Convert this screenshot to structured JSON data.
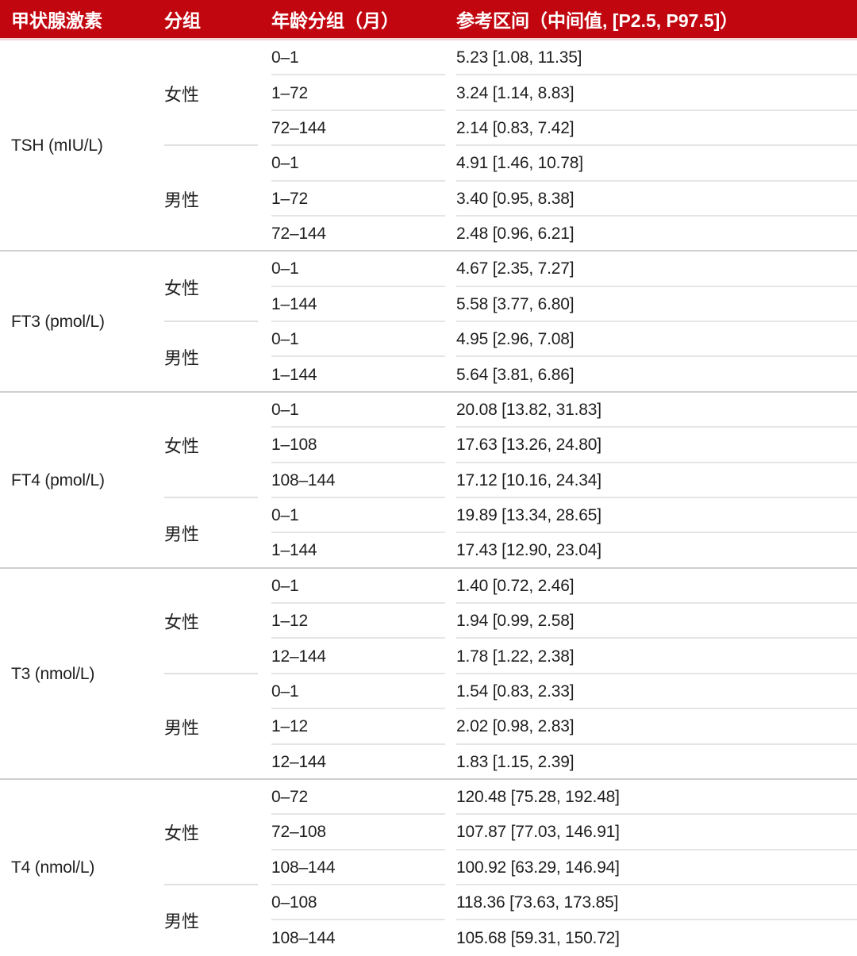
{
  "colors": {
    "header_bg": "#c2060f",
    "header_text": "#ffffff"
  },
  "table": {
    "header": {
      "bg_color": "#c2060f",
      "columns": [
        "甲状腺激素",
        "分组",
        "年龄分组（月）",
        "参考区间（中间值, [P2.5, P97.5]）"
      ]
    },
    "sections": [
      {
        "hormone": "TSH (mIU/L)",
        "groups": [
          {
            "sex": "女性",
            "rows": [
              {
                "age": "0–1",
                "interval": "5.23 [1.08, 11.35]"
              },
              {
                "age": "1–72",
                "interval": "3.24 [1.14, 8.83]"
              },
              {
                "age": "72–144",
                "interval": "2.14 [0.83, 7.42]"
              }
            ]
          },
          {
            "sex": "男性",
            "rows": [
              {
                "age": "0–1",
                "interval": "4.91 [1.46, 10.78]"
              },
              {
                "age": "1–72",
                "interval": "3.40 [0.95, 8.38]"
              },
              {
                "age": "72–144",
                "interval": "2.48 [0.96, 6.21]"
              }
            ]
          }
        ]
      },
      {
        "hormone": "FT3 (pmol/L)",
        "groups": [
          {
            "sex": "女性",
            "rows": [
              {
                "age": "0–1",
                "interval": "4.67 [2.35, 7.27]"
              },
              {
                "age": "1–144",
                "interval": "5.58 [3.77, 6.80]"
              }
            ]
          },
          {
            "sex": "男性",
            "rows": [
              {
                "age": "0–1",
                "interval": "4.95 [2.96, 7.08]"
              },
              {
                "age": "1–144",
                "interval": "5.64 [3.81, 6.86]"
              }
            ]
          }
        ]
      },
      {
        "hormone": "FT4 (pmol/L)",
        "groups": [
          {
            "sex": "女性",
            "rows": [
              {
                "age": "0–1",
                "interval": "20.08 [13.82, 31.83]"
              },
              {
                "age": "1–108",
                "interval": "17.63 [13.26, 24.80]"
              },
              {
                "age": "108–144",
                "interval": "17.12 [10.16, 24.34]"
              }
            ]
          },
          {
            "sex": "男性",
            "rows": [
              {
                "age": "0–1",
                "interval": "19.89 [13.34, 28.65]"
              },
              {
                "age": "1–144",
                "interval": "17.43 [12.90, 23.04]"
              }
            ]
          }
        ]
      },
      {
        "hormone": "T3 (nmol/L)",
        "groups": [
          {
            "sex": "女性",
            "rows": [
              {
                "age": "0–1",
                "interval": "1.40 [0.72, 2.46]"
              },
              {
                "age": "1–12",
                "interval": "1.94 [0.99, 2.58]"
              },
              {
                "age": "12–144",
                "interval": "1.78 [1.22, 2.38]"
              }
            ]
          },
          {
            "sex": "男性",
            "rows": [
              {
                "age": "0–1",
                "interval": "1.54 [0.83, 2.33]"
              },
              {
                "age": "1–12",
                "interval": "2.02 [0.98, 2.83]"
              },
              {
                "age": "12–144",
                "interval": "1.83 [1.15, 2.39]"
              }
            ]
          }
        ]
      },
      {
        "hormone": "T4 (nmol/L)",
        "groups": [
          {
            "sex": "女性",
            "rows": [
              {
                "age": "0–72",
                "interval": "120.48 [75.28, 192.48]"
              },
              {
                "age": "72–108",
                "interval": "107.87 [77.03, 146.91]"
              },
              {
                "age": "108–144",
                "interval": "100.92 [63.29, 146.94]"
              }
            ]
          },
          {
            "sex": "男性",
            "rows": [
              {
                "age": "0–108",
                "interval": "118.36 [73.63, 173.85]"
              },
              {
                "age": "108–144",
                "interval": "105.68 [59.31, 150.72]"
              }
            ]
          }
        ]
      }
    ]
  }
}
